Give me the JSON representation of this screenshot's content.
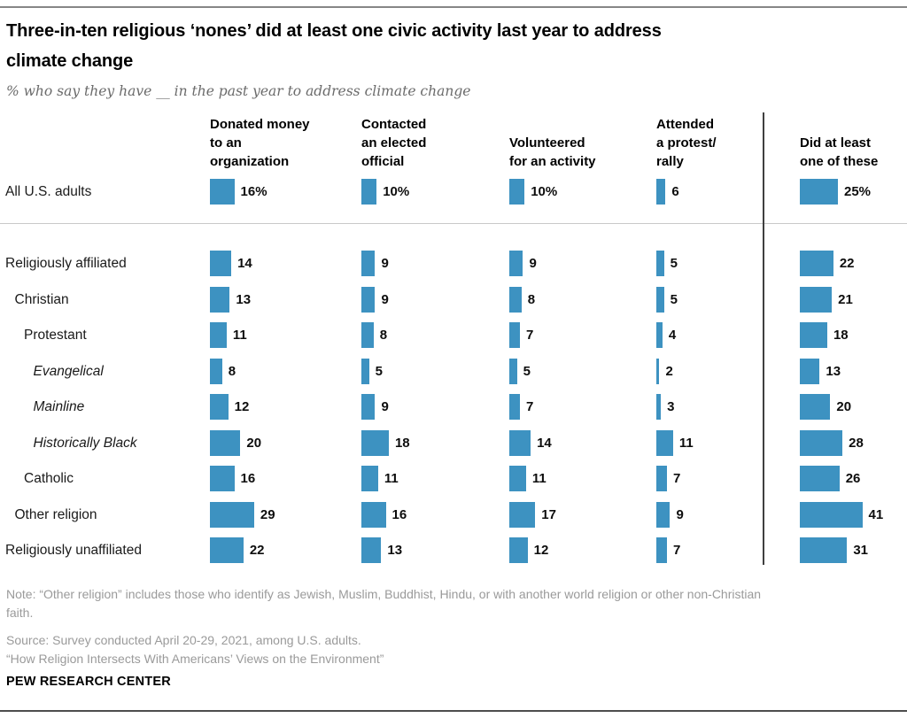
{
  "page": {
    "title": "Three-in-ten religious ‘nones’ did at least one civic activity last year to address\nclimate change",
    "subtitle": "% who say they have __ in the past year to address climate change",
    "note": "Note: “Other religion” includes those who identify as Jewish, Muslim, Buddhist, Hindu, or with another world religion or other non-Christian\nfaith.",
    "source": "Source: Survey conducted April 20-29, 2021, among U.S. adults.",
    "citation": "“How Religion Intersects With Americans’ Views on the Environment”",
    "brand": "PEW RESEARCH CENTER"
  },
  "chart_data": {
    "type": "bar",
    "title": "Three-in-ten religious ‘nones’ did at least one civic activity last year to address climate change",
    "subtitle": "% who say they have __ in the past year to address climate change",
    "unit": "percent",
    "xlim": [
      0,
      45
    ],
    "grid": false,
    "legend": "none",
    "bar_color": "#3d92c1",
    "columns": [
      {
        "label": "Donated money\nto an\norganization"
      },
      {
        "label": "Contacted\nan elected\nofficial"
      },
      {
        "label": "Volunteered\nfor an activity"
      },
      {
        "label": "Attended\na protest/\nrally"
      },
      {
        "label": "Did at least\none of these"
      }
    ],
    "rows": [
      {
        "label": "All U.S. adults",
        "indent": 0,
        "italic": false,
        "values": [
          16,
          10,
          10,
          6,
          25
        ],
        "display": [
          "16%",
          "10%",
          "10%",
          "6",
          "25%"
        ]
      },
      {
        "label": "Religiously affiliated",
        "indent": 0,
        "italic": false,
        "values": [
          14,
          9,
          9,
          5,
          22
        ],
        "display": [
          "14",
          "9",
          "9",
          "5",
          "22"
        ]
      },
      {
        "label": "Christian",
        "indent": 1,
        "italic": false,
        "values": [
          13,
          9,
          8,
          5,
          21
        ],
        "display": [
          "13",
          "9",
          "8",
          "5",
          "21"
        ]
      },
      {
        "label": "Protestant",
        "indent": 2,
        "italic": false,
        "values": [
          11,
          8,
          7,
          4,
          18
        ],
        "display": [
          "11",
          "8",
          "7",
          "4",
          "18"
        ]
      },
      {
        "label": "Evangelical",
        "indent": 3,
        "italic": true,
        "values": [
          8,
          5,
          5,
          2,
          13
        ],
        "display": [
          "8",
          "5",
          "5",
          "2",
          "13"
        ]
      },
      {
        "label": "Mainline",
        "indent": 3,
        "italic": true,
        "values": [
          12,
          9,
          7,
          3,
          20
        ],
        "display": [
          "12",
          "9",
          "7",
          "3",
          "20"
        ]
      },
      {
        "label": "Historically Black",
        "indent": 3,
        "italic": true,
        "values": [
          20,
          18,
          14,
          11,
          28
        ],
        "display": [
          "20",
          "18",
          "14",
          "11",
          "28"
        ]
      },
      {
        "label": "Catholic",
        "indent": 2,
        "italic": false,
        "values": [
          16,
          11,
          11,
          7,
          26
        ],
        "display": [
          "16",
          "11",
          "11",
          "7",
          "26"
        ]
      },
      {
        "label": "Other religion",
        "indent": 1,
        "italic": false,
        "values": [
          29,
          16,
          17,
          9,
          41
        ],
        "display": [
          "29",
          "16",
          "17",
          "9",
          "41"
        ]
      },
      {
        "label": "Religiously unaffiliated",
        "indent": 0,
        "italic": false,
        "values": [
          22,
          13,
          12,
          7,
          31
        ],
        "display": [
          "22",
          "13",
          "12",
          "7",
          "31"
        ]
      }
    ]
  }
}
